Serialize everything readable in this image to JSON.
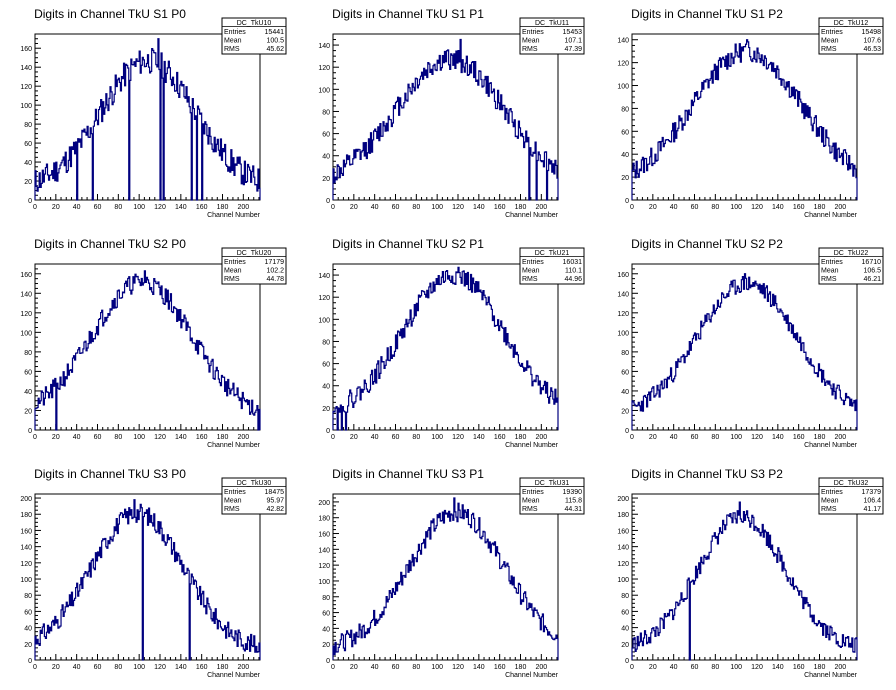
{
  "chart_data": [
    {
      "type": "histogram",
      "title": "Digits in Channel TkU S1 P0",
      "xlabel": "Channel Number",
      "xlim": [
        0,
        216
      ],
      "ylim": [
        0,
        175
      ],
      "xticks": [
        0,
        20,
        40,
        60,
        80,
        100,
        120,
        140,
        160,
        180,
        200
      ],
      "yticks": [
        0,
        20,
        40,
        60,
        80,
        100,
        120,
        140,
        160
      ],
      "stats": {
        "name": "DC_TkU10",
        "entries": "15441",
        "mean": "100.5",
        "rms": "45.62"
      },
      "peak_x": 108,
      "sigma": 45,
      "peak": 135,
      "noise": 14,
      "seed": 11,
      "zero_bins": [
        40,
        55,
        90,
        150,
        155,
        160,
        120,
        123
      ],
      "spikes": [
        [
          40,
          75
        ],
        [
          55,
          90
        ],
        [
          118,
          170
        ],
        [
          123,
          165
        ]
      ],
      "low_start": 0
    },
    {
      "type": "histogram",
      "title": "Digits in Channel TkU S1 P1",
      "xlabel": "Channel Number",
      "xlim": [
        0,
        216
      ],
      "ylim": [
        0,
        150
      ],
      "xticks": [
        0,
        20,
        40,
        60,
        80,
        100,
        120,
        140,
        160,
        180,
        200
      ],
      "yticks": [
        0,
        20,
        40,
        60,
        80,
        100,
        120,
        140
      ],
      "stats": {
        "name": "DC_TkU11",
        "entries": "15453",
        "mean": "107.1",
        "rms": "47.39"
      },
      "peak_x": 112,
      "sigma": 52,
      "peak": 115,
      "noise": 10,
      "seed": 12,
      "zero_bins": [
        188,
        195,
        205
      ],
      "spikes": [
        [
          122,
          145
        ]
      ],
      "low_start": 0
    },
    {
      "type": "histogram",
      "title": "Digits in Channel TkU S1 P2",
      "xlabel": "Channel Number",
      "xlim": [
        0,
        216
      ],
      "ylim": [
        0,
        145
      ],
      "xticks": [
        0,
        20,
        40,
        60,
        80,
        100,
        120,
        140,
        160,
        180,
        200
      ],
      "yticks": [
        0,
        20,
        40,
        60,
        80,
        100,
        120,
        140
      ],
      "stats": {
        "name": "DC_TkU12",
        "entries": "15498",
        "mean": "107.6",
        "rms": "46.53"
      },
      "peak_x": 110,
      "sigma": 52,
      "peak": 118,
      "noise": 9,
      "seed": 13,
      "zero_bins": [],
      "spikes": [
        [
          110,
          140
        ]
      ],
      "low_start": 0
    },
    {
      "type": "histogram",
      "title": "Digits in Channel TkU S2 P0",
      "xlabel": "Channel Number",
      "xlim": [
        0,
        216
      ],
      "ylim": [
        0,
        170
      ],
      "xticks": [
        0,
        20,
        40,
        60,
        80,
        100,
        120,
        140,
        160,
        180,
        200
      ],
      "yticks": [
        0,
        20,
        40,
        60,
        80,
        100,
        120,
        140,
        160
      ],
      "stats": {
        "name": "DC_TkU20",
        "entries": "17179",
        "mean": "102.2",
        "rms": "44.78"
      },
      "peak_x": 102,
      "sigma": 48,
      "peak": 140,
      "noise": 10,
      "seed": 21,
      "zero_bins": [
        20,
        214
      ],
      "spikes": [
        [
          105,
          163
        ]
      ],
      "low_start": 0
    },
    {
      "type": "histogram",
      "title": "Digits in Channel TkU S2 P1",
      "xlabel": "Channel Number",
      "xlim": [
        0,
        216
      ],
      "ylim": [
        0,
        150
      ],
      "xticks": [
        0,
        20,
        40,
        60,
        80,
        100,
        120,
        140,
        160,
        180,
        200
      ],
      "yticks": [
        0,
        20,
        40,
        60,
        80,
        100,
        120,
        140
      ],
      "stats": {
        "name": "DC_TkU21",
        "entries": "16031",
        "mean": "110.1",
        "rms": "44.96"
      },
      "peak_x": 115,
      "sigma": 48,
      "peak": 128,
      "noise": 9,
      "seed": 22,
      "zero_bins": [
        4,
        8,
        12
      ],
      "spikes": [
        [
          120,
          147
        ]
      ],
      "low_start": 14
    },
    {
      "type": "histogram",
      "title": "Digits in Channel TkU S2 P2",
      "xlabel": "Channel Number",
      "xlim": [
        0,
        216
      ],
      "ylim": [
        0,
        170
      ],
      "xticks": [
        0,
        20,
        40,
        60,
        80,
        100,
        120,
        140,
        160,
        180,
        200
      ],
      "yticks": [
        0,
        20,
        40,
        60,
        80,
        100,
        120,
        140,
        160
      ],
      "stats": {
        "name": "DC_TkU22",
        "entries": "16710",
        "mean": "106.5",
        "rms": "46.21"
      },
      "peak_x": 110,
      "sigma": 48,
      "peak": 138,
      "noise": 9,
      "seed": 23,
      "zero_bins": [],
      "spikes": [
        [
          108,
          160
        ]
      ],
      "low_start": 0
    },
    {
      "type": "histogram",
      "title": "Digits in Channel TkU S3 P0",
      "xlabel": "Channel Number",
      "xlim": [
        0,
        216
      ],
      "ylim": [
        0,
        205
      ],
      "xticks": [
        0,
        20,
        40,
        60,
        80,
        100,
        120,
        140,
        160,
        180,
        200
      ],
      "yticks": [
        0,
        20,
        40,
        60,
        80,
        100,
        120,
        140,
        160,
        180,
        200
      ],
      "stats": {
        "name": "DC_TkU30",
        "entries": "18475",
        "mean": "95.97",
        "rms": "42.82"
      },
      "peak_x": 98,
      "sigma": 44,
      "peak": 170,
      "noise": 12,
      "seed": 31,
      "zero_bins": [
        103,
        148
      ],
      "spikes": [
        [
          95,
          198
        ]
      ],
      "low_start": 0
    },
    {
      "type": "histogram",
      "title": "Digits in Channel TkU S3 P1",
      "xlabel": "Channel Number",
      "xlim": [
        0,
        216
      ],
      "ylim": [
        0,
        210
      ],
      "xticks": [
        0,
        20,
        40,
        60,
        80,
        100,
        120,
        140,
        160,
        180,
        200
      ],
      "yticks": [
        0,
        20,
        40,
        60,
        80,
        100,
        120,
        140,
        160,
        180,
        200
      ],
      "stats": {
        "name": "DC_TkU31",
        "entries": "19390",
        "mean": "115.8",
        "rms": "44.31"
      },
      "peak_x": 118,
      "sigma": 46,
      "peak": 175,
      "noise": 12,
      "seed": 32,
      "zero_bins": [],
      "spikes": [
        [
          116,
          205
        ]
      ],
      "low_start": 0
    },
    {
      "type": "histogram",
      "title": "Digits in Channel TkU S3 P2",
      "xlabel": "Channel Number",
      "xlim": [
        0,
        216
      ],
      "ylim": [
        0,
        205
      ],
      "xticks": [
        0,
        20,
        40,
        60,
        80,
        100,
        120,
        140,
        160,
        180,
        200
      ],
      "yticks": [
        0,
        20,
        40,
        60,
        80,
        100,
        120,
        140,
        160,
        180,
        200
      ],
      "stats": {
        "name": "DC_TkU32",
        "entries": "17379",
        "mean": "106.4",
        "rms": "41.17"
      },
      "peak_x": 105,
      "sigma": 42,
      "peak": 165,
      "noise": 11,
      "seed": 33,
      "zero_bins": [
        55
      ],
      "spikes": [
        [
          103,
          195
        ]
      ],
      "low_start": 0
    }
  ],
  "stats_labels": {
    "entries": "Entries",
    "mean": "Mean",
    "rms": "RMS"
  },
  "colors": {
    "line": "#00007f",
    "axis": "#000000",
    "background": "#ffffff"
  }
}
